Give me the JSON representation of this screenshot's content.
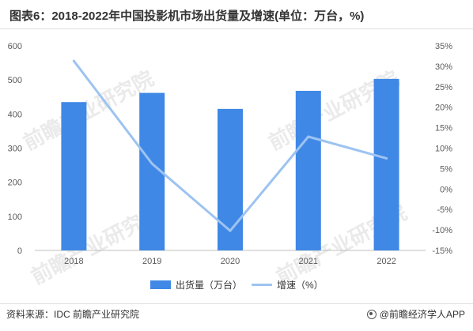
{
  "title": "图表6：2018-2022年中国投影机市场出货量及增速(单位：万台，%)",
  "chart_data": {
    "type": "bar",
    "categories": [
      "2018",
      "2019",
      "2020",
      "2021",
      "2022"
    ],
    "series": [
      {
        "name": "出货量（万台）",
        "type": "bar",
        "axis": "left",
        "values": [
          435,
          462,
          415,
          468,
          503
        ],
        "color": "#3f88e6"
      },
      {
        "name": "增速（%）",
        "type": "line",
        "axis": "right",
        "values": [
          31.3,
          6.2,
          -10.2,
          12.8,
          7.5
        ],
        "color": "#9dc3f1"
      }
    ],
    "y_left": {
      "ylim": [
        0,
        600
      ],
      "ticks": [
        "0",
        "100",
        "200",
        "300",
        "400",
        "500",
        "600"
      ]
    },
    "y_right": {
      "ylim": [
        -15,
        35
      ],
      "ticks": [
        "-15%",
        "-10%",
        "-5%",
        "0%",
        "5%",
        "10%",
        "15%",
        "20%",
        "25%",
        "30%",
        "35%"
      ]
    },
    "legend": "bottom",
    "grid": false
  },
  "footer": {
    "source": "资料来源：IDC 前瞻产业研究院",
    "brand": "@前瞻经济学人APP"
  },
  "watermark": "前瞻产业研究院"
}
